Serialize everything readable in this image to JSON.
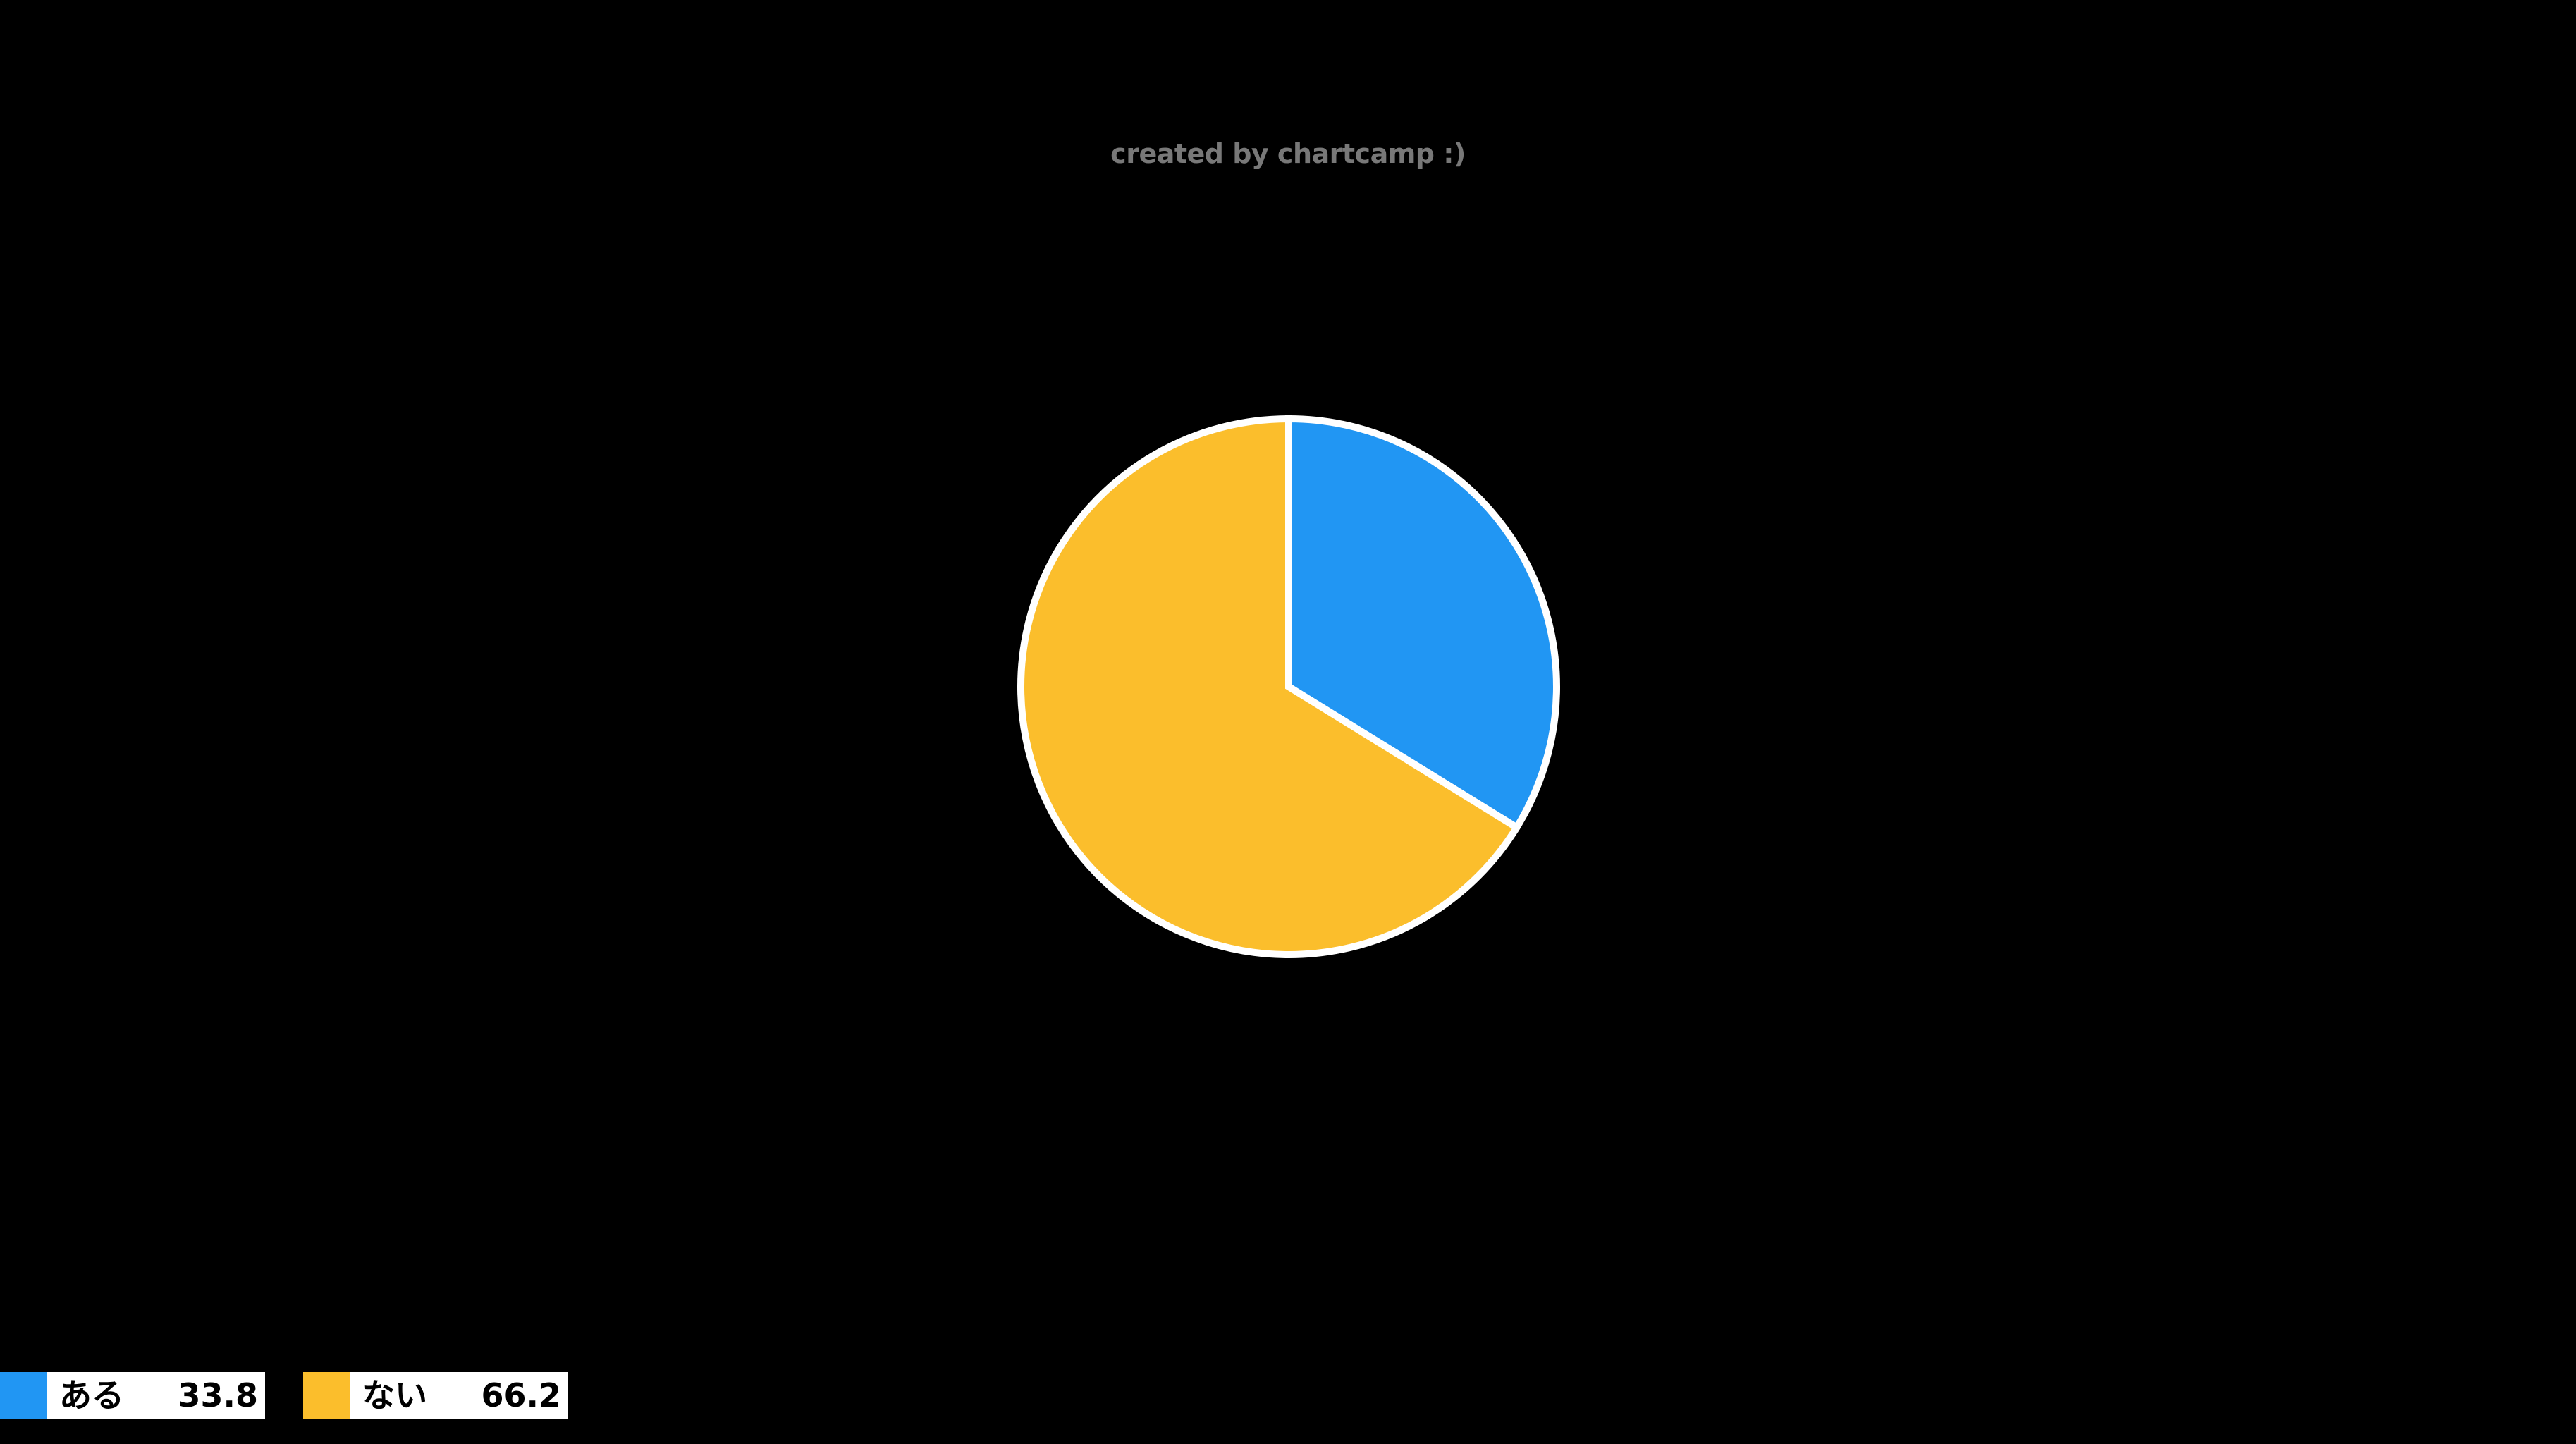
{
  "header": {
    "watermark": "created by chartcamp :)",
    "watermark_color": "#787878"
  },
  "background_color": "#000000",
  "chart_data": {
    "type": "pie",
    "title": "",
    "labels": [
      "ある",
      "ない"
    ],
    "values": [
      33.8,
      66.2
    ],
    "values_text": [
      "33.8",
      "66.2"
    ],
    "colors": [
      "#2196F3",
      "#FBBE2C"
    ],
    "slice_border_color": "#FFFFFF",
    "slice_border_width": 10,
    "start_angle_deg": -90,
    "direction": "clockwise",
    "legend_position": "bottom-left",
    "legend_box_background": "#FFFFFF",
    "legend_text_color": "#000000"
  }
}
